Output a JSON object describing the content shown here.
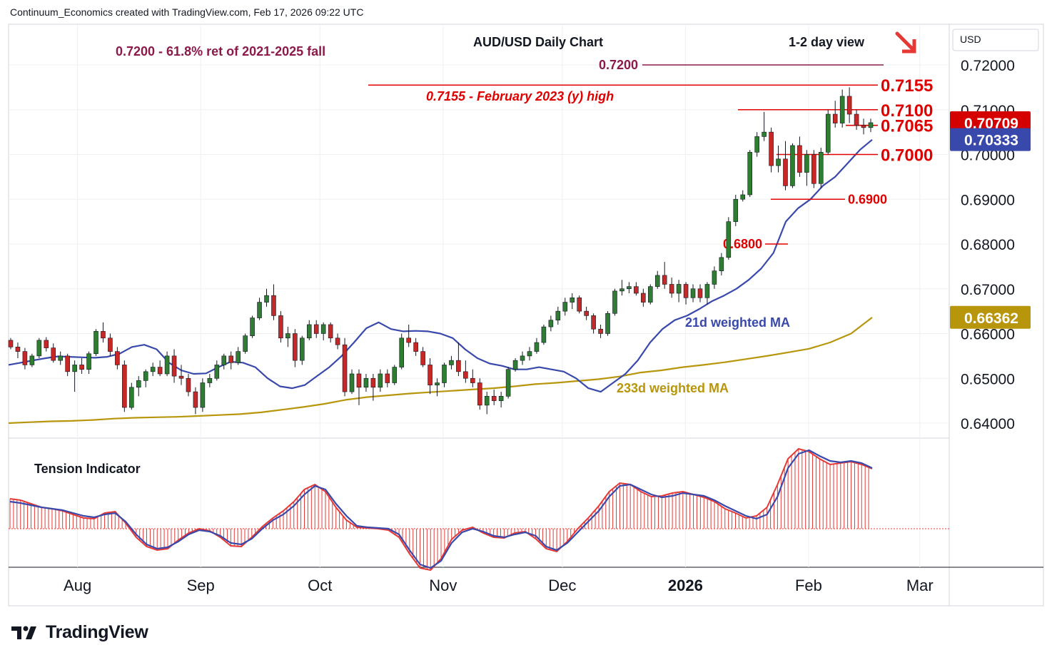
{
  "header": {
    "credit": "Continuum_Economics created with TradingView.com, Feb 17, 2026 09:22 UTC"
  },
  "footer": {
    "brand": "TradingView"
  },
  "colors": {
    "up": "#2e7d32",
    "down": "#c62828",
    "ma21": "#3949ab",
    "ma233": "#b8960c",
    "level_red": "#e00000",
    "level_purple": "#8b1a4a",
    "hist": "#e53935"
  },
  "chart_data": {
    "type": "candlestick",
    "title": "AUD/USD Daily Chart",
    "view_label": "1-2 day view",
    "view_direction": "down",
    "currency": "USD",
    "y_range": [
      0.6365,
      0.728
    ],
    "y_ticks": [
      "0.72000",
      "0.71000",
      "0.70000",
      "0.69000",
      "0.68000",
      "0.67000",
      "0.66000",
      "0.65000",
      "0.64000"
    ],
    "x_months": [
      "Aug",
      "Sep",
      "Oct",
      "Nov",
      "Dec",
      "2026",
      "Feb",
      "Mar"
    ],
    "x_dates": [
      "2025-07-15",
      "2026-02-17"
    ],
    "last_price": "0.70709",
    "ma21_price": "0.70333",
    "ma233_price": "0.66362",
    "levels": [
      {
        "value": 0.72,
        "label": "0.7200",
        "color": "#8b1a4a"
      },
      {
        "value": 0.7155,
        "label": "0.7155",
        "color": "#e00000"
      },
      {
        "value": 0.71,
        "label": "0.7100",
        "color": "#e00000"
      },
      {
        "value": 0.7065,
        "label": "0.7065",
        "color": "#e00000"
      },
      {
        "value": 0.7,
        "label": "0.7000",
        "color": "#e00000"
      },
      {
        "value": 0.69,
        "label": "0.6900",
        "color": "#e00000"
      },
      {
        "value": 0.68,
        "label": "0.6800",
        "color": "#e00000"
      }
    ],
    "annotations": {
      "retracement": "0.7200 - 61.8% ret of 2021-2025 fall",
      "feb2023": "0.7155 - February 2023 (y) high",
      "ma21": "21d weighted MA",
      "ma233": "233d weighted MA",
      "tension": "Tension Indicator"
    },
    "ma21_series": [
      0.653,
      0.6535,
      0.654,
      0.6545,
      0.6549,
      0.6548,
      0.6547,
      0.6546,
      0.6548,
      0.6555,
      0.657,
      0.6575,
      0.6565,
      0.6535,
      0.6518,
      0.651,
      0.6511,
      0.6525,
      0.6537,
      0.6535,
      0.6525,
      0.65,
      0.6482,
      0.6478,
      0.6485,
      0.6505,
      0.6525,
      0.655,
      0.658,
      0.6612,
      0.6625,
      0.661,
      0.6605,
      0.6606,
      0.6605,
      0.66,
      0.659,
      0.6565,
      0.6545,
      0.6533,
      0.6528,
      0.652,
      0.652,
      0.6525,
      0.652,
      0.6515,
      0.65,
      0.6478,
      0.647,
      0.649,
      0.651,
      0.654,
      0.658,
      0.661,
      0.663,
      0.664,
      0.6655,
      0.6672,
      0.6685,
      0.67,
      0.672,
      0.6745,
      0.678,
      0.685,
      0.688,
      0.69,
      0.693,
      0.695,
      0.698,
      0.701,
      0.7033
    ],
    "ma233_series": [
      0.64,
      0.6402,
      0.6404,
      0.6405,
      0.6407,
      0.641,
      0.6412,
      0.6413,
      0.6414,
      0.6416,
      0.6418,
      0.642,
      0.6424,
      0.643,
      0.6436,
      0.6443,
      0.6452,
      0.6458,
      0.6462,
      0.6466,
      0.6469,
      0.6472,
      0.6475,
      0.6478,
      0.6482,
      0.6487,
      0.649,
      0.6494,
      0.6498,
      0.6504,
      0.6513,
      0.6518,
      0.6525,
      0.653,
      0.6536,
      0.6543,
      0.655,
      0.6558,
      0.6566,
      0.658,
      0.66,
      0.6636
    ],
    "candles": [
      [
        0.6585,
        0.659,
        0.6565,
        0.657
      ],
      [
        0.657,
        0.658,
        0.6545,
        0.656
      ],
      [
        0.656,
        0.6568,
        0.652,
        0.653
      ],
      [
        0.653,
        0.6555,
        0.6525,
        0.655
      ],
      [
        0.655,
        0.659,
        0.6545,
        0.6585
      ],
      [
        0.6585,
        0.6592,
        0.656,
        0.6568
      ],
      [
        0.6568,
        0.6578,
        0.6535,
        0.654
      ],
      [
        0.654,
        0.656,
        0.653,
        0.655
      ],
      [
        0.655,
        0.6555,
        0.6505,
        0.6515
      ],
      [
        0.6515,
        0.654,
        0.647,
        0.653
      ],
      [
        0.653,
        0.6545,
        0.651,
        0.652
      ],
      [
        0.652,
        0.656,
        0.651,
        0.6555
      ],
      [
        0.6555,
        0.661,
        0.655,
        0.6605
      ],
      [
        0.6605,
        0.6625,
        0.658,
        0.659
      ],
      [
        0.659,
        0.66,
        0.655,
        0.656
      ],
      [
        0.656,
        0.657,
        0.652,
        0.653
      ],
      [
        0.653,
        0.654,
        0.6425,
        0.6435
      ],
      [
        0.6435,
        0.649,
        0.643,
        0.648
      ],
      [
        0.648,
        0.6505,
        0.646,
        0.6495
      ],
      [
        0.6495,
        0.652,
        0.648,
        0.6515
      ],
      [
        0.6515,
        0.6535,
        0.6505,
        0.6525
      ],
      [
        0.6525,
        0.654,
        0.6505,
        0.651
      ],
      [
        0.651,
        0.656,
        0.6505,
        0.655
      ],
      [
        0.655,
        0.6565,
        0.649,
        0.6505
      ],
      [
        0.6505,
        0.653,
        0.6485,
        0.65
      ],
      [
        0.65,
        0.651,
        0.646,
        0.647
      ],
      [
        0.647,
        0.648,
        0.642,
        0.6435
      ],
      [
        0.6435,
        0.65,
        0.6425,
        0.649
      ],
      [
        0.649,
        0.651,
        0.648,
        0.65
      ],
      [
        0.65,
        0.654,
        0.6495,
        0.653
      ],
      [
        0.653,
        0.6555,
        0.652,
        0.655
      ],
      [
        0.655,
        0.656,
        0.652,
        0.6535
      ],
      [
        0.6535,
        0.657,
        0.653,
        0.656
      ],
      [
        0.656,
        0.66,
        0.6555,
        0.6595
      ],
      [
        0.6595,
        0.664,
        0.659,
        0.6635
      ],
      [
        0.6635,
        0.668,
        0.663,
        0.667
      ],
      [
        0.667,
        0.67,
        0.666,
        0.6685
      ],
      [
        0.6685,
        0.671,
        0.663,
        0.664
      ],
      [
        0.664,
        0.665,
        0.658,
        0.659
      ],
      [
        0.659,
        0.6615,
        0.657,
        0.66
      ],
      [
        0.66,
        0.661,
        0.6525,
        0.654
      ],
      [
        0.654,
        0.6595,
        0.653,
        0.659
      ],
      [
        0.659,
        0.663,
        0.6585,
        0.662
      ],
      [
        0.662,
        0.663,
        0.659,
        0.66
      ],
      [
        0.66,
        0.6625,
        0.6585,
        0.662
      ],
      [
        0.662,
        0.6625,
        0.658,
        0.659
      ],
      [
        0.659,
        0.66,
        0.6565,
        0.6575
      ],
      [
        0.6575,
        0.659,
        0.646,
        0.647
      ],
      [
        0.647,
        0.652,
        0.6465,
        0.651
      ],
      [
        0.651,
        0.652,
        0.644,
        0.648
      ],
      [
        0.648,
        0.651,
        0.647,
        0.65
      ],
      [
        0.65,
        0.651,
        0.645,
        0.648
      ],
      [
        0.648,
        0.652,
        0.647,
        0.651
      ],
      [
        0.651,
        0.652,
        0.648,
        0.649
      ],
      [
        0.649,
        0.653,
        0.6485,
        0.6525
      ],
      [
        0.6525,
        0.66,
        0.652,
        0.659
      ],
      [
        0.659,
        0.662,
        0.657,
        0.658
      ],
      [
        0.658,
        0.659,
        0.655,
        0.656
      ],
      [
        0.656,
        0.657,
        0.6525,
        0.653
      ],
      [
        0.653,
        0.6545,
        0.6465,
        0.6485
      ],
      [
        0.6485,
        0.65,
        0.646,
        0.649
      ],
      [
        0.649,
        0.6535,
        0.648,
        0.653
      ],
      [
        0.653,
        0.655,
        0.652,
        0.654
      ],
      [
        0.654,
        0.658,
        0.6505,
        0.6515
      ],
      [
        0.6515,
        0.654,
        0.649,
        0.65
      ],
      [
        0.65,
        0.652,
        0.648,
        0.649
      ],
      [
        0.649,
        0.65,
        0.643,
        0.644
      ],
      [
        0.644,
        0.647,
        0.642,
        0.646
      ],
      [
        0.646,
        0.6475,
        0.644,
        0.645
      ],
      [
        0.645,
        0.647,
        0.6435,
        0.646
      ],
      [
        0.646,
        0.6525,
        0.6455,
        0.652
      ],
      [
        0.652,
        0.6545,
        0.6515,
        0.654
      ],
      [
        0.654,
        0.656,
        0.653,
        0.655
      ],
      [
        0.655,
        0.657,
        0.654,
        0.656
      ],
      [
        0.656,
        0.659,
        0.6555,
        0.658
      ],
      [
        0.658,
        0.662,
        0.6575,
        0.6615
      ],
      [
        0.6615,
        0.664,
        0.6605,
        0.663
      ],
      [
        0.663,
        0.666,
        0.662,
        0.665
      ],
      [
        0.665,
        0.668,
        0.664,
        0.667
      ],
      [
        0.667,
        0.669,
        0.6655,
        0.668
      ],
      [
        0.668,
        0.6685,
        0.6645,
        0.665
      ],
      [
        0.665,
        0.666,
        0.663,
        0.664
      ],
      [
        0.664,
        0.6645,
        0.66,
        0.661
      ],
      [
        0.661,
        0.662,
        0.659,
        0.66
      ],
      [
        0.66,
        0.665,
        0.6595,
        0.6645
      ],
      [
        0.6645,
        0.67,
        0.664,
        0.6695
      ],
      [
        0.6695,
        0.672,
        0.6685,
        0.67
      ],
      [
        0.67,
        0.6715,
        0.669,
        0.6705
      ],
      [
        0.6705,
        0.6715,
        0.6685,
        0.669
      ],
      [
        0.669,
        0.67,
        0.666,
        0.667
      ],
      [
        0.667,
        0.671,
        0.6665,
        0.6705
      ],
      [
        0.6705,
        0.674,
        0.67,
        0.673
      ],
      [
        0.673,
        0.676,
        0.67,
        0.671
      ],
      [
        0.671,
        0.6725,
        0.668,
        0.669
      ],
      [
        0.669,
        0.672,
        0.667,
        0.671
      ],
      [
        0.671,
        0.6715,
        0.6665,
        0.668
      ],
      [
        0.668,
        0.671,
        0.667,
        0.67
      ],
      [
        0.67,
        0.671,
        0.667,
        0.668
      ],
      [
        0.668,
        0.6715,
        0.6665,
        0.671
      ],
      [
        0.671,
        0.675,
        0.67,
        0.674
      ],
      [
        0.674,
        0.678,
        0.673,
        0.677
      ],
      [
        0.677,
        0.686,
        0.6765,
        0.685
      ],
      [
        0.685,
        0.691,
        0.684,
        0.69
      ],
      [
        0.69,
        0.692,
        0.6895,
        0.691
      ],
      [
        0.691,
        0.701,
        0.6905,
        0.7005
      ],
      [
        0.7005,
        0.705,
        0.6995,
        0.704
      ],
      [
        0.704,
        0.7095,
        0.703,
        0.705
      ],
      [
        0.705,
        0.706,
        0.696,
        0.6975
      ],
      [
        0.6975,
        0.702,
        0.696,
        0.699
      ],
      [
        0.699,
        0.703,
        0.692,
        0.693
      ],
      [
        0.693,
        0.7025,
        0.6925,
        0.702
      ],
      [
        0.702,
        0.704,
        0.695,
        0.696
      ],
      [
        0.696,
        0.701,
        0.693,
        0.7
      ],
      [
        0.7,
        0.701,
        0.6925,
        0.6935
      ],
      [
        0.6935,
        0.7015,
        0.6925,
        0.7005
      ],
      [
        0.7005,
        0.71,
        0.7,
        0.709
      ],
      [
        0.709,
        0.712,
        0.706,
        0.707
      ],
      [
        0.707,
        0.7145,
        0.706,
        0.713
      ],
      [
        0.713,
        0.715,
        0.707,
        0.709
      ],
      [
        0.709,
        0.71,
        0.7055,
        0.7065
      ],
      [
        0.7065,
        0.708,
        0.7045,
        0.706
      ],
      [
        0.706,
        0.708,
        0.705,
        0.7071
      ]
    ],
    "tension_line_series": [
      38,
      36,
      33,
      30,
      28,
      26,
      22,
      18,
      16,
      20,
      22,
      10,
      -8,
      -22,
      -28,
      -26,
      -18,
      -8,
      -2,
      -4,
      -10,
      -20,
      -22,
      -14,
      0,
      12,
      20,
      32,
      48,
      60,
      55,
      35,
      18,
      4,
      2,
      1,
      0,
      -8,
      -30,
      -50,
      -55,
      -45,
      -20,
      -5,
      0,
      -4,
      -10,
      -12,
      -8,
      -5,
      -10,
      -25,
      -30,
      -20,
      -5,
      10,
      25,
      45,
      60,
      62,
      55,
      48,
      44,
      46,
      50,
      48,
      46,
      40,
      32,
      25,
      18,
      14,
      20,
      45,
      85,
      105,
      110,
      102,
      95,
      93,
      95,
      92,
      85
    ],
    "tension_hist_series": [
      42,
      40,
      35,
      30,
      28,
      25,
      20,
      15,
      14,
      22,
      24,
      8,
      -12,
      -25,
      -30,
      -28,
      -16,
      -6,
      0,
      -3,
      -12,
      -24,
      -25,
      -12,
      3,
      15,
      25,
      38,
      55,
      62,
      52,
      30,
      12,
      2,
      1,
      0,
      -2,
      -12,
      -35,
      -55,
      -58,
      -42,
      -15,
      -2,
      2,
      -6,
      -12,
      -13,
      -6,
      -4,
      -14,
      -28,
      -32,
      -18,
      0,
      15,
      32,
      52,
      64,
      62,
      52,
      45,
      46,
      50,
      52,
      48,
      44,
      38,
      28,
      22,
      15,
      18,
      30,
      62,
      98,
      112,
      108,
      98,
      90,
      92,
      94,
      90,
      84
    ]
  }
}
